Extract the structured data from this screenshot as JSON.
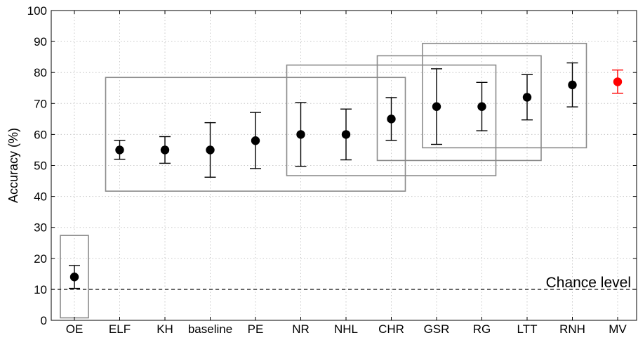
{
  "chart_data": {
    "type": "errorbar",
    "ylabel": "Accuracy (%)",
    "ylim": [
      0,
      100
    ],
    "yticks": [
      0,
      10,
      20,
      30,
      40,
      50,
      60,
      70,
      80,
      90,
      100
    ],
    "grid": true,
    "categories": [
      "OE",
      "ELF",
      "KH",
      "baseline",
      "PE",
      "NR",
      "NHL",
      "CHR",
      "GSR",
      "RG",
      "LTT",
      "RNH",
      "MV"
    ],
    "series": [
      {
        "values": [
          14,
          55,
          55,
          55,
          58,
          60,
          60,
          65,
          69,
          69,
          72,
          76,
          77
        ],
        "lower": [
          10.3,
          52,
          50.7,
          46.2,
          49,
          49.7,
          51.8,
          58.1,
          56.8,
          61.2,
          64.7,
          68.9,
          73.3
        ],
        "upper": [
          17.7,
          58.1,
          59.3,
          63.8,
          67.1,
          70.3,
          68.2,
          71.9,
          81.2,
          76.8,
          79.3,
          83.1,
          80.8
        ],
        "colors": [
          "#000000",
          "#000000",
          "#000000",
          "#000000",
          "#000000",
          "#000000",
          "#000000",
          "#000000",
          "#000000",
          "#000000",
          "#000000",
          "#000000",
          "#ff0000"
        ]
      }
    ],
    "groups": [
      {
        "from": "OE",
        "to": "OE",
        "ymin": 0.8,
        "ymax": 27.4
      },
      {
        "from": "ELF",
        "to": "CHR",
        "ymin": 41.7,
        "ymax": 78.4
      },
      {
        "from": "NR",
        "to": "RG",
        "ymin": 46.7,
        "ymax": 82.4
      },
      {
        "from": "CHR",
        "to": "LTT",
        "ymin": 51.6,
        "ymax": 85.4
      },
      {
        "from": "GSR",
        "to": "RNH",
        "ymin": 55.7,
        "ymax": 89.4
      }
    ],
    "reference_line": {
      "y": 10,
      "label": "Chance level",
      "style": "dashed"
    }
  },
  "colors": {
    "axis": "#000000",
    "grid": "#c8c8c8",
    "group_box": "#8a8a8a",
    "marker": "#000000",
    "highlight": "#ff0000"
  }
}
